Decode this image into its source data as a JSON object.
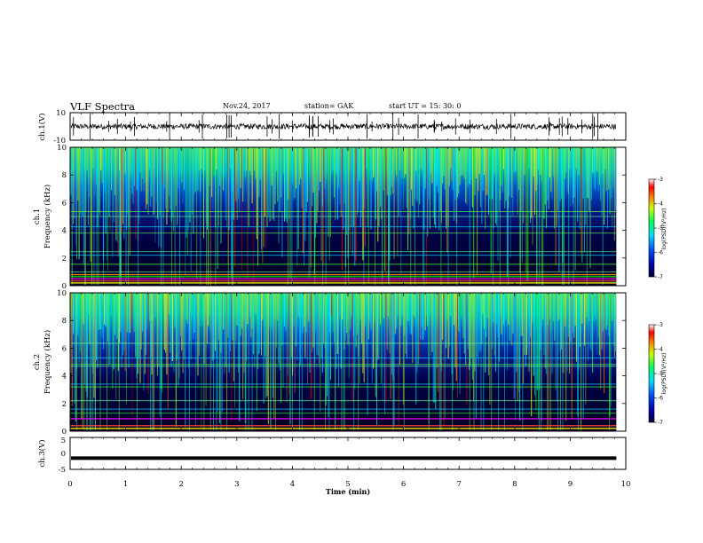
{
  "header": {
    "title": "VLF Spectra",
    "date": "Nov.24, 2017",
    "station": "station= GAK",
    "start": "start  UT =   15: 30: 0"
  },
  "chart_data": [
    {
      "type": "line",
      "name": "ch1-waveform",
      "ylabel": "ch.1(V)",
      "ylim": [
        -10,
        10
      ],
      "yticks": [
        "10",
        "-10"
      ],
      "xlim": [
        0,
        10
      ],
      "level": 0,
      "noise_amplitude": 2
    },
    {
      "type": "heatmap",
      "name": "ch1-spectrogram",
      "ylabel_top": "ch.1",
      "ylabel": "Frequency  (kHz)",
      "ylim": [
        0,
        10
      ],
      "yticks": [
        "0",
        "2",
        "4",
        "6",
        "8",
        "10"
      ],
      "xlim": [
        0,
        9.83
      ],
      "colorbar": {
        "label": "log(PSD)(V²/Hz)",
        "ticks": [
          "-3",
          "-4",
          "-5",
          "-6",
          "-7"
        ],
        "range": [
          -7,
          -3
        ]
      },
      "lines_khz": [
        0.2,
        0.35,
        0.5,
        0.65,
        0.8,
        1.0,
        1.55,
        2.2,
        2.45,
        3.8,
        4.25,
        5.0,
        5.35
      ]
    },
    {
      "type": "heatmap",
      "name": "ch2-spectrogram",
      "ylabel_top": "ch.2",
      "ylabel": "Frequency  (kHz)",
      "ylim": [
        0,
        10
      ],
      "yticks": [
        "0",
        "2",
        "4",
        "6",
        "8",
        "10"
      ],
      "xlim": [
        0,
        9.83
      ],
      "colorbar": {
        "label": "log(PSD)(V²/Hz)",
        "ticks": [
          "-3",
          "-4",
          "-5",
          "-6",
          "-7"
        ],
        "range": [
          -7,
          -3
        ]
      },
      "lines_khz": [
        0.2,
        0.4,
        0.9,
        1.3,
        1.6,
        2.2,
        3.2,
        3.4,
        4.7,
        4.85,
        5.3,
        6.35
      ]
    },
    {
      "type": "line",
      "name": "ch3-waveform",
      "ylabel": "ch.3(V)",
      "ylim": [
        -5,
        5
      ],
      "yticks": [
        "5",
        "0",
        "-5"
      ],
      "xlim": [
        0,
        10
      ],
      "level": -1.5
    }
  ],
  "xaxis": {
    "label": "Time  (min)",
    "ticks": [
      "0",
      "1",
      "2",
      "3",
      "4",
      "5",
      "6",
      "7",
      "8",
      "9",
      "10"
    ]
  }
}
